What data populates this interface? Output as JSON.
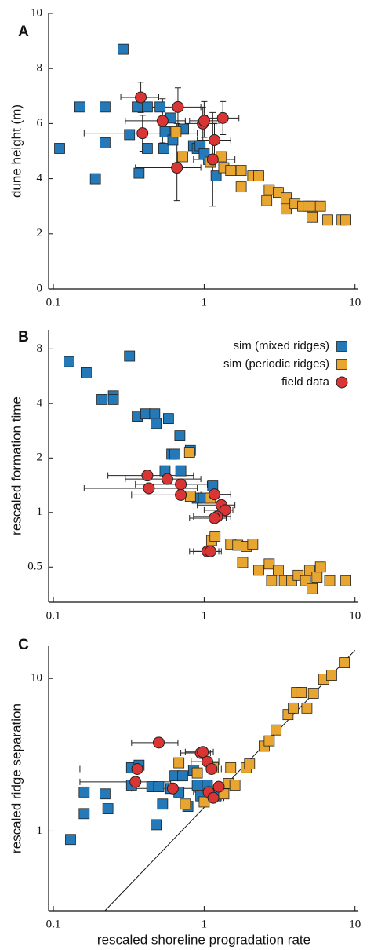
{
  "chart_data": [
    {
      "type": "scatter",
      "panel_label": "A",
      "y_label": "dune height (m)",
      "xlog": true,
      "ylog": false,
      "xlim": [
        0.093,
        10.4
      ],
      "xticks": [
        0.1,
        1,
        10
      ],
      "ylim": [
        0,
        10
      ],
      "yticks": [
        0,
        2,
        4,
        6,
        8,
        10
      ],
      "series": [
        {
          "color": "#2479b8",
          "marker": "square",
          "x": [
            0.11,
            0.15,
            0.22,
            0.22,
            0.19,
            0.29,
            0.32,
            0.37,
            0.36,
            0.42,
            0.42,
            0.51,
            0.54,
            0.55,
            0.62,
            0.6,
            0.73,
            0.85,
            0.9,
            0.94,
            1.07,
            1.2,
            1.0
          ],
          "y": [
            5.1,
            6.6,
            6.6,
            5.3,
            4.0,
            8.7,
            5.6,
            4.2,
            6.6,
            6.6,
            5.1,
            6.6,
            5.1,
            5.7,
            5.4,
            6.2,
            5.8,
            5.2,
            5.1,
            5.2,
            4.7,
            4.1,
            4.9
          ]
        },
        {
          "color": "#e8a630",
          "marker": "square",
          "x": [
            0.72,
            1.1,
            1.3,
            1.35,
            1.5,
            1.76,
            2.1,
            1.76,
            2.6,
            2.7,
            3.1,
            3.5,
            3.5,
            4.0,
            4.5,
            4.9,
            5.2,
            5.2,
            5.9,
            6.6,
            8.2,
            8.7,
            2.3,
            0.65
          ],
          "y": [
            4.8,
            4.6,
            4.8,
            4.4,
            4.3,
            4.3,
            4.1,
            3.7,
            3.2,
            3.6,
            3.5,
            3.3,
            2.9,
            3.1,
            3.0,
            3.0,
            3.0,
            2.6,
            3.0,
            2.5,
            2.5,
            2.5,
            4.1,
            5.7
          ]
        },
        {
          "color": "#d93535",
          "marker": "circle",
          "x": [
            0.38,
            0.39,
            0.53,
            0.66,
            0.67,
            0.98,
            1.0,
            1.17,
            1.14,
            1.33
          ],
          "y": [
            6.95,
            5.65,
            6.1,
            4.4,
            6.6,
            6.0,
            6.1,
            5.4,
            4.7,
            6.2
          ],
          "x_low": [
            0.28,
            0.16,
            0.3,
            0.35,
            0.4,
            0.75,
            0.8,
            0.9,
            0.85,
            1.05
          ],
          "x_high": [
            0.5,
            0.9,
            0.75,
            0.95,
            0.95,
            1.2,
            1.25,
            1.5,
            1.6,
            1.7
          ],
          "y_low": [
            6.4,
            5.0,
            5.3,
            3.2,
            5.9,
            5.4,
            5.5,
            4.8,
            3.0,
            5.6
          ],
          "y_high": [
            7.5,
            6.3,
            6.9,
            6.0,
            7.3,
            6.6,
            6.8,
            6.0,
            6.4,
            6.8
          ]
        }
      ]
    },
    {
      "type": "scatter",
      "panel_label": "B",
      "y_label": "rescaled formation time",
      "xlog": true,
      "ylog": true,
      "xlim": [
        0.093,
        10.4
      ],
      "xticks": [
        0.1,
        1,
        10
      ],
      "ylim": [
        0.32,
        10.2
      ],
      "yticks": [
        0.5,
        1,
        2,
        4,
        8
      ],
      "legend": "upper right",
      "series": [
        {
          "name": "sim (mixed ridges)",
          "color": "#2479b8",
          "marker": "square",
          "x": [
            0.127,
            0.165,
            0.21,
            0.25,
            0.25,
            0.32,
            0.36,
            0.41,
            0.47,
            0.48,
            0.58,
            0.61,
            0.64,
            0.69,
            0.81,
            0.55,
            0.7,
            0.9,
            0.99,
            1.14
          ],
          "y": [
            6.8,
            5.9,
            4.2,
            4.4,
            4.2,
            7.3,
            3.4,
            3.5,
            3.5,
            3.1,
            3.3,
            2.1,
            2.1,
            2.65,
            2.2,
            1.7,
            1.7,
            1.2,
            1.2,
            1.4
          ]
        },
        {
          "name": "sim (periodic ridges)",
          "color": "#e8a630",
          "marker": "square",
          "x": [
            0.8,
            0.81,
            1.1,
            1.12,
            1.18,
            1.5,
            1.67,
            1.9,
            1.8,
            2.1,
            2.3,
            2.7,
            2.8,
            3.1,
            3.4,
            3.8,
            4.2,
            4.7,
            5.0,
            5.2,
            5.6,
            5.9,
            6.8,
            8.7
          ],
          "y": [
            2.15,
            1.23,
            1.2,
            0.7,
            0.74,
            0.67,
            0.66,
            0.65,
            0.53,
            0.67,
            0.48,
            0.52,
            0.42,
            0.48,
            0.42,
            0.42,
            0.45,
            0.42,
            0.48,
            0.38,
            0.44,
            0.5,
            0.42,
            0.42
          ]
        },
        {
          "name": "field data",
          "color": "#d93535",
          "marker": "circle",
          "x": [
            0.42,
            0.43,
            0.57,
            0.7,
            0.7,
            1.17,
            1.3,
            1.38,
            1.22,
            1.17,
            1.05,
            1.1
          ],
          "y": [
            1.6,
            1.36,
            1.53,
            1.43,
            1.25,
            1.26,
            1.1,
            1.03,
            0.95,
            0.93,
            0.61,
            0.61
          ],
          "x_low": [
            0.23,
            0.16,
            0.3,
            0.35,
            0.33,
            0.85,
            0.9,
            1.0,
            0.85,
            0.8,
            0.8,
            0.85
          ],
          "x_high": [
            0.85,
            0.9,
            0.95,
            1.05,
            0.95,
            1.5,
            1.6,
            1.55,
            1.5,
            1.4,
            1.25,
            1.3
          ]
        }
      ]
    },
    {
      "type": "scatter",
      "panel_label": "C",
      "y_label": "rescaled ridge separation",
      "x_label": "rescaled shoreline progradation rate",
      "xlog": true,
      "ylog": true,
      "xlim": [
        0.093,
        10.4
      ],
      "xticks": [
        0.1,
        1,
        10
      ],
      "ylim": [
        0.3,
        16.3
      ],
      "yticks": [
        1,
        10
      ],
      "line": {
        "x": [
          0.22,
          10
        ],
        "y": [
          0.3,
          15.3
        ]
      },
      "series": [
        {
          "color": "#2479b8",
          "marker": "square",
          "x": [
            0.13,
            0.16,
            0.16,
            0.22,
            0.23,
            0.33,
            0.37,
            0.33,
            0.45,
            0.48,
            0.5,
            0.53,
            0.6,
            0.64,
            0.68,
            0.72,
            0.78,
            0.85,
            0.9,
            0.95,
            1.05,
            1.2
          ],
          "y": [
            0.88,
            1.8,
            1.3,
            1.75,
            1.4,
            2.6,
            2.7,
            2.0,
            1.95,
            1.1,
            1.95,
            1.5,
            1.9,
            2.3,
            1.8,
            2.3,
            1.45,
            2.5,
            2.0,
            1.7,
            2.0,
            1.7
          ]
        },
        {
          "color": "#e8a630",
          "marker": "square",
          "x": [
            0.68,
            0.75,
            0.9,
            1.0,
            1.15,
            1.35,
            1.45,
            1.5,
            1.6,
            1.9,
            2.0,
            2.5,
            2.7,
            3.0,
            3.6,
            3.9,
            4.1,
            4.4,
            4.8,
            5.3,
            6.2,
            7.0,
            8.5
          ],
          "y": [
            2.8,
            1.5,
            2.4,
            1.55,
            2.6,
            1.75,
            2.05,
            2.6,
            2.0,
            2.6,
            2.75,
            3.6,
            3.9,
            4.6,
            5.8,
            6.4,
            8.1,
            8.1,
            6.4,
            8.0,
            9.9,
            10.5,
            12.7
          ]
        },
        {
          "color": "#d93535",
          "marker": "circle",
          "x": [
            0.36,
            0.35,
            0.5,
            0.62,
            0.95,
            0.98,
            1.05,
            1.12,
            1.25,
            1.07,
            1.15
          ],
          "y": [
            2.55,
            2.1,
            3.8,
            1.9,
            3.25,
            3.3,
            2.85,
            2.55,
            1.95,
            1.8,
            1.65
          ],
          "x_low": [
            0.15,
            0.15,
            0.33,
            0.33,
            0.7,
            0.75,
            0.82,
            0.85,
            1.0,
            0.85,
            0.9
          ],
          "x_high": [
            0.55,
            0.6,
            0.67,
            0.9,
            1.1,
            1.15,
            1.25,
            1.3,
            1.45,
            1.3,
            1.35
          ]
        }
      ]
    }
  ]
}
